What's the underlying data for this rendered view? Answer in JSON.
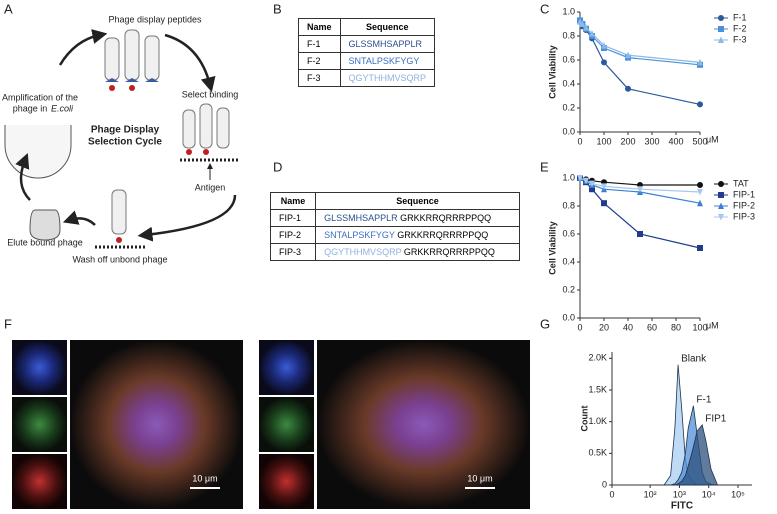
{
  "panel_labels": [
    "A",
    "B",
    "C",
    "D",
    "E",
    "F",
    "G"
  ],
  "diagram": {
    "top_label": "Phage display peptides",
    "select": "Select binding",
    "cycle_title": [
      "Phage Display",
      "Selection Cycle"
    ],
    "antigen": "Antigen",
    "wash": "Wash off unbond phage",
    "elute": "Elute bound phage",
    "amplification": [
      "Amplification of the",
      "phage in",
      "E.coli"
    ]
  },
  "table_b": {
    "header": [
      "Name",
      "Sequence"
    ],
    "rows": [
      [
        "F-1",
        "GLSSMHSAPPLR"
      ],
      [
        "F-2",
        "SNTALPSKFYGY"
      ],
      [
        "F-3",
        "QGYTHHMVSQRP"
      ]
    ],
    "colors": [
      "#2b4f8e",
      "#3a6fc0",
      "#8fb1e0"
    ]
  },
  "table_d": {
    "header": [
      "Name",
      "Sequence"
    ],
    "rows": [
      [
        "FIP-1",
        "GLSSMHSAPPLR",
        "GRKKRRQRRRPPQQ"
      ],
      [
        "FIP-2",
        "SNTALPSKFYGY",
        "GRKKRRQRRRPPQQ"
      ],
      [
        "FIP-3",
        "QGYTHHMVSQRP",
        "GRKKRRQRRRPPQQ"
      ]
    ],
    "colors": [
      "#2b4f8e",
      "#3a6fc0",
      "#8fb1e0"
    ]
  },
  "scale_bars": [
    "10 μm",
    "10 μm"
  ],
  "chart_data": [
    {
      "type": "line",
      "ylabel": "Cell Viability",
      "xlabel": "μM",
      "legend": "right",
      "x": [
        0,
        10,
        25,
        50,
        100,
        200,
        500
      ],
      "xlim": [
        0,
        500
      ],
      "xticks": [
        0,
        100,
        200,
        300,
        400,
        500
      ],
      "ylim": [
        0,
        1.0
      ],
      "yticks": [
        {
          "value": 0,
          "label": "0.0"
        },
        {
          "value": 0.2,
          "label": "0.2"
        },
        {
          "value": 0.4,
          "label": "0.4"
        },
        {
          "value": 0.6,
          "label": "0.6"
        },
        {
          "value": 0.8,
          "label": "0.8"
        },
        {
          "value": 1.0,
          "label": "1.0"
        }
      ],
      "series": [
        {
          "name": "F-1",
          "color": "#2a5a9c",
          "marker": "circle",
          "values": [
            0.92,
            0.88,
            0.85,
            0.78,
            0.58,
            0.36,
            0.23
          ]
        },
        {
          "name": "F-2",
          "color": "#4a90d9",
          "marker": "square",
          "values": [
            0.93,
            0.9,
            0.86,
            0.8,
            0.7,
            0.62,
            0.56
          ]
        },
        {
          "name": "F-3",
          "color": "#8ab8e8",
          "marker": "triangle",
          "values": [
            0.92,
            0.9,
            0.87,
            0.82,
            0.72,
            0.64,
            0.58
          ]
        }
      ]
    },
    {
      "type": "line",
      "ylabel": "Cell Viability",
      "xlabel": "μM",
      "legend": "right",
      "x": [
        0,
        5,
        10,
        20,
        50,
        100
      ],
      "xlim": [
        0,
        100
      ],
      "xticks": [
        0,
        20,
        40,
        60,
        80,
        100
      ],
      "ylim": [
        0,
        1.0
      ],
      "yticks": [
        {
          "value": 0,
          "label": "0.0"
        },
        {
          "value": 0.2,
          "label": "0.2"
        },
        {
          "value": 0.4,
          "label": "0.4"
        },
        {
          "value": 0.6,
          "label": "0.6"
        },
        {
          "value": 0.8,
          "label": "0.8"
        },
        {
          "value": 1.0,
          "label": "1.0"
        }
      ],
      "series": [
        {
          "name": "TAT",
          "color": "#111111",
          "marker": "circle",
          "values": [
            1.0,
            0.99,
            0.98,
            0.97,
            0.95,
            0.95
          ]
        },
        {
          "name": "FIP-1",
          "color": "#1f3d8c",
          "marker": "square",
          "values": [
            1.0,
            0.97,
            0.92,
            0.82,
            0.6,
            0.5
          ]
        },
        {
          "name": "FIP-2",
          "color": "#3a7fd5",
          "marker": "triangle",
          "values": [
            1.0,
            0.98,
            0.95,
            0.92,
            0.9,
            0.82
          ]
        },
        {
          "name": "FIP-3",
          "color": "#a5c8ef",
          "marker": "triangle-down",
          "values": [
            1.0,
            0.98,
            0.96,
            0.94,
            0.92,
            0.9
          ]
        }
      ]
    },
    {
      "type": "area",
      "ylabel": "Count",
      "xlabel": "FITC",
      "legend": "inline",
      "xscale": "biexponential",
      "x": [
        300,
        500,
        700,
        900,
        1200,
        1600,
        2000,
        3000,
        4000,
        6000,
        8000,
        12000,
        20000
      ],
      "xlim": [
        0,
        300000
      ],
      "xticks": [
        0,
        {
          "value": 100,
          "label": "10²"
        },
        {
          "value": 1000,
          "label": "10³"
        },
        {
          "value": 10000,
          "label": "10⁴"
        },
        {
          "value": 100000,
          "label": "10⁵"
        }
      ],
      "ylim": [
        0,
        2100
      ],
      "yticks": [
        0,
        {
          "value": 500,
          "label": "0.5K"
        },
        {
          "value": 1000,
          "label": "1.0K"
        },
        {
          "value": 1500,
          "label": "1.5K"
        },
        {
          "value": 2000,
          "label": "2.0K"
        }
      ],
      "series": [
        {
          "name": "Blank",
          "color": "#a9cdf0",
          "values": [
            0,
            150,
            900,
            1900,
            1200,
            400,
            150,
            50,
            0,
            0,
            0,
            0,
            0
          ]
        },
        {
          "name": "F-1",
          "color": "#4f8fd6",
          "values": [
            0,
            0,
            20,
            80,
            200,
            500,
            900,
            1250,
            800,
            200,
            50,
            10,
            0
          ]
        },
        {
          "name": "FIP1",
          "color": "#2c4f7c",
          "values": [
            0,
            0,
            0,
            20,
            60,
            150,
            300,
            600,
            850,
            950,
            700,
            250,
            0
          ]
        }
      ]
    }
  ]
}
